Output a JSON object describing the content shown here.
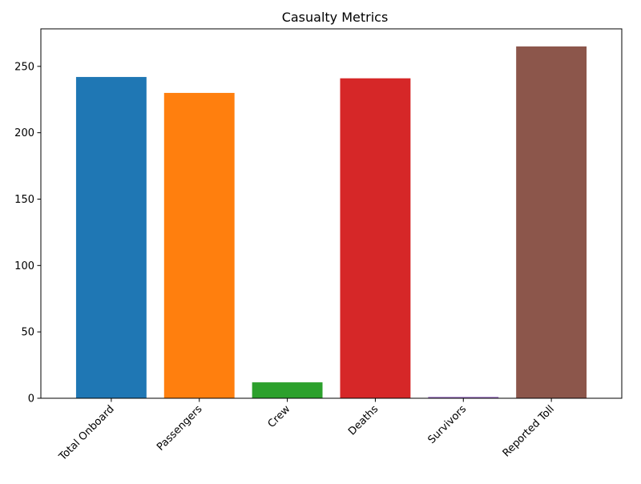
{
  "chart_data": {
    "type": "bar",
    "title": "Casualty Metrics",
    "xlabel": "",
    "ylabel": "",
    "categories": [
      "Total Onboard",
      "Passengers",
      "Crew",
      "Deaths",
      "Survivors",
      "Reported Toll"
    ],
    "values": [
      242,
      230,
      12,
      241,
      1,
      265
    ],
    "colors": [
      "#1f77b4",
      "#ff7f0e",
      "#2ca02c",
      "#d62728",
      "#9467bd",
      "#8c564b"
    ],
    "ylim": [
      0,
      278.25
    ],
    "yticks": [
      0,
      50,
      100,
      150,
      200,
      250
    ],
    "grid": false,
    "legend": "none"
  }
}
